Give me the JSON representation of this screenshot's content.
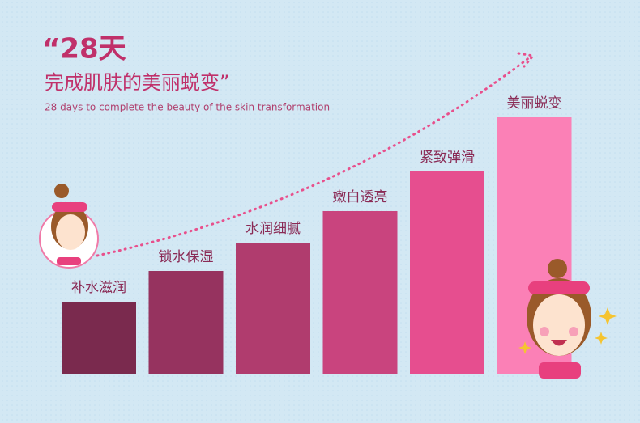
{
  "chart_data": {
    "type": "bar",
    "title": "“28天",
    "subtitle": "完成肌肤的美丽蜕变”",
    "caption": "28 days to complete the beauty of the skin transformation",
    "categories": [
      "补水滋润",
      "锁水保湿",
      "水润细腻",
      "嫩白透亮",
      "紧致弹滑",
      "美丽蜕变"
    ],
    "values": [
      89,
      127,
      162,
      201,
      250,
      317
    ],
    "colors": [
      "#7a2a4e",
      "#96335f",
      "#b03c6e",
      "#c9447e",
      "#e64e8f",
      "#fb80b6"
    ],
    "ylim": [
      0,
      350
    ]
  }
}
